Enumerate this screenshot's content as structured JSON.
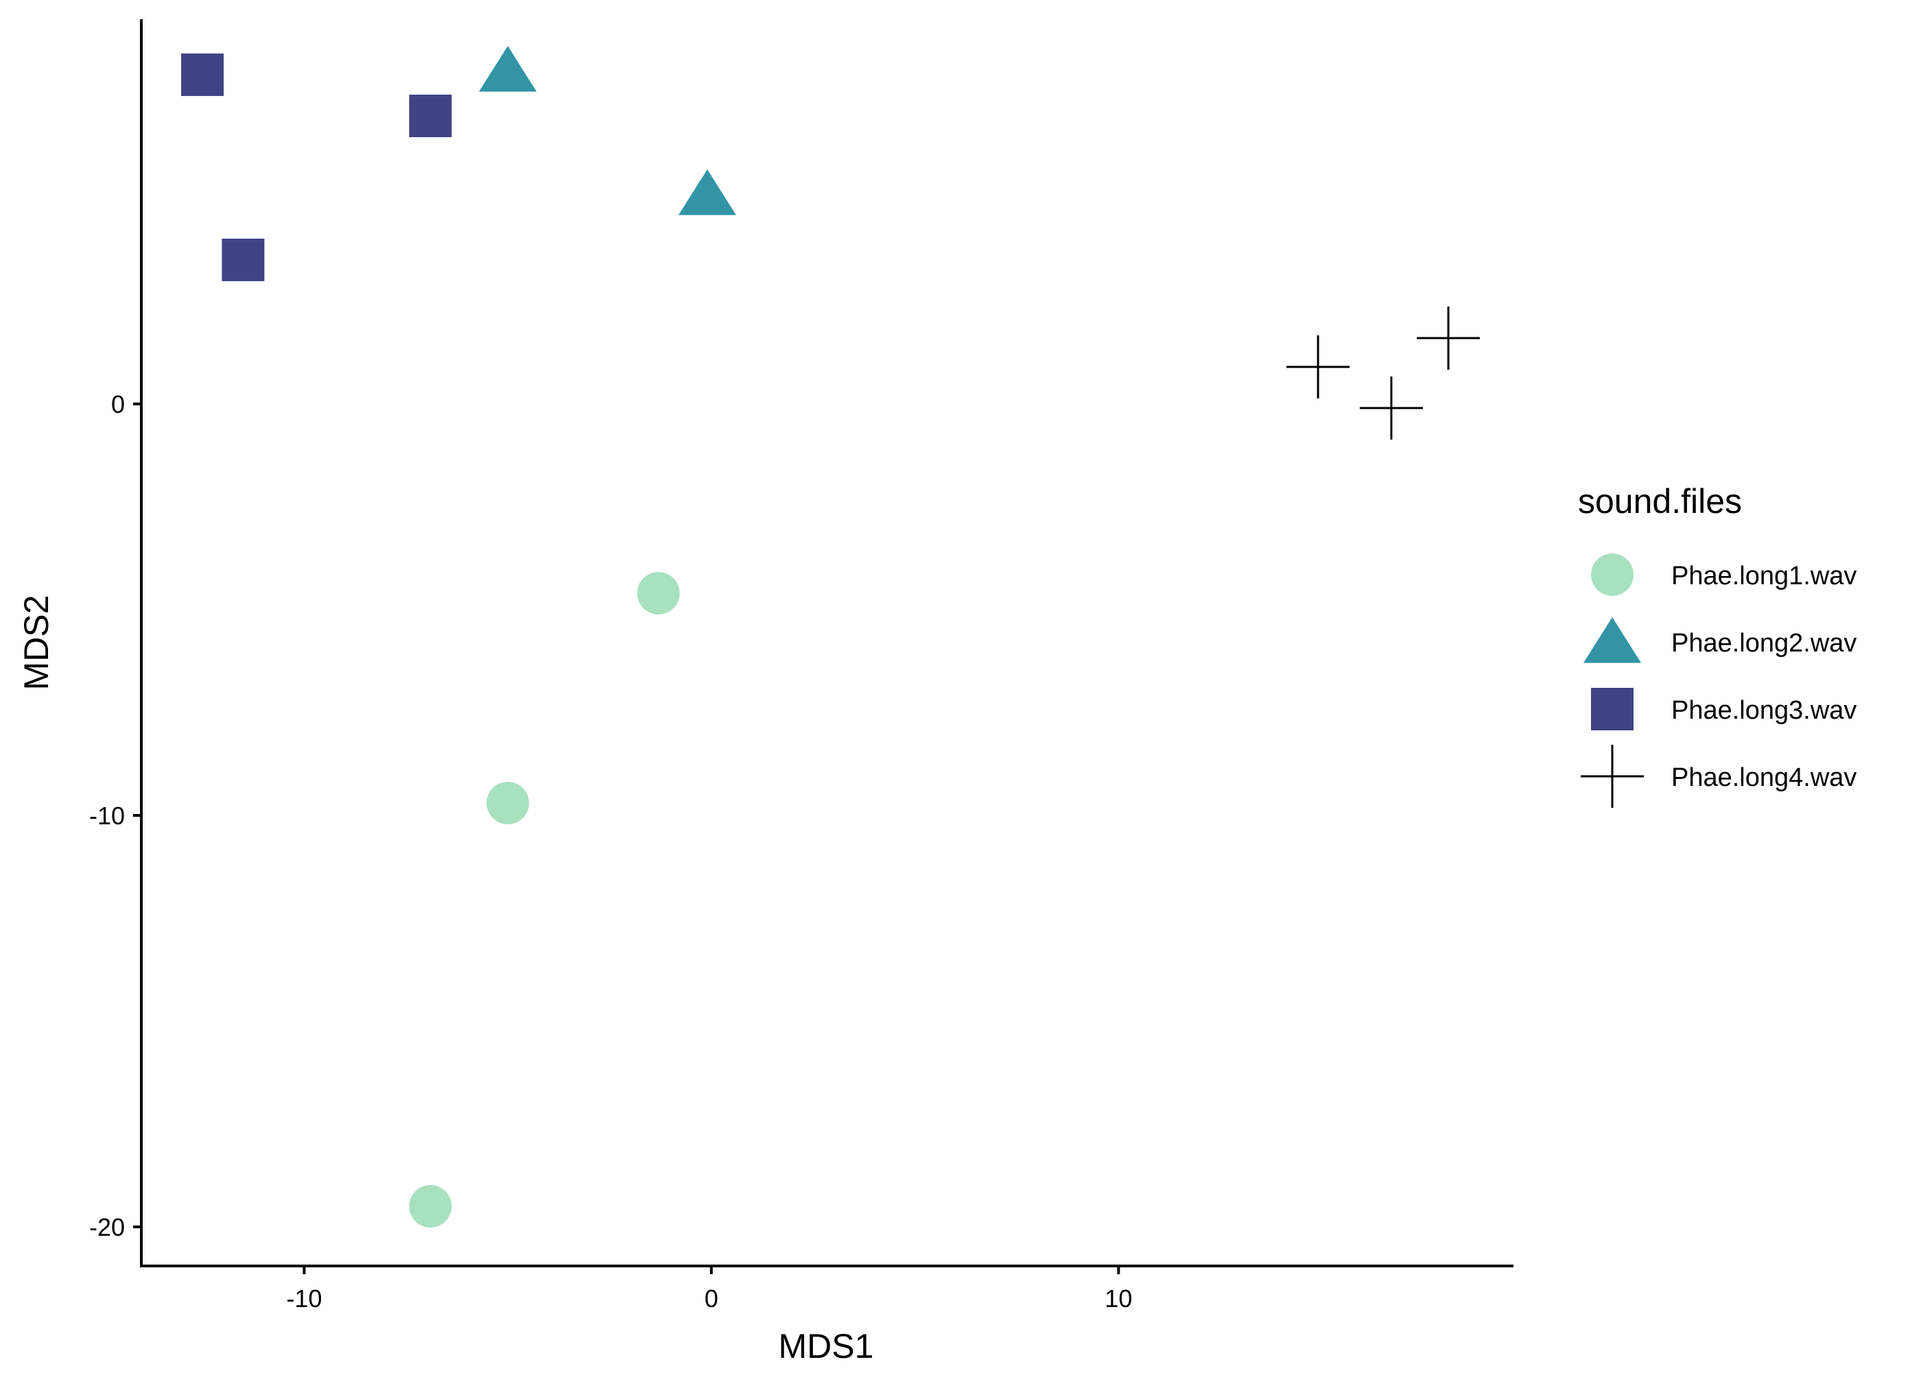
{
  "chart_data": {
    "type": "scatter",
    "title": "",
    "xlabel": "MDS1",
    "ylabel": "MDS2",
    "xlim": [
      -14,
      19.7
    ],
    "ylim": [
      -20.95,
      9.35
    ],
    "x_ticks": [
      {
        "value": -10,
        "label": "-10"
      },
      {
        "value": 0,
        "label": "0"
      },
      {
        "value": 10,
        "label": "10"
      }
    ],
    "y_ticks": [
      {
        "value": -20,
        "label": "-20"
      },
      {
        "value": -10,
        "label": "-10"
      },
      {
        "value": 0,
        "label": "0"
      }
    ],
    "grid": false,
    "legend": {
      "title": "sound.files",
      "placement": "right"
    },
    "series": [
      {
        "name": "Phae.long1.wav",
        "shape": "circle",
        "color": "#a8e1bf",
        "points": [
          {
            "x": -1.3,
            "y": -4.6
          },
          {
            "x": -5.0,
            "y": -9.7
          },
          {
            "x": -6.9,
            "y": -19.5
          }
        ]
      },
      {
        "name": "Phae.long2.wav",
        "shape": "triangle",
        "color": "#3195a6",
        "points": [
          {
            "x": -5.0,
            "y": 8.1
          },
          {
            "x": -0.1,
            "y": 5.1
          }
        ]
      },
      {
        "name": "Phae.long3.wav",
        "shape": "square",
        "color": "#414284",
        "points": [
          {
            "x": -12.5,
            "y": 8.0
          },
          {
            "x": -6.9,
            "y": 7.0
          },
          {
            "x": -11.5,
            "y": 3.5
          }
        ]
      },
      {
        "name": "Phae.long4.wav",
        "shape": "plus",
        "color": "#000000",
        "points": [
          {
            "x": 14.9,
            "y": 0.9
          },
          {
            "x": 16.7,
            "y": -0.1
          },
          {
            "x": 18.1,
            "y": 1.6
          }
        ]
      }
    ]
  }
}
